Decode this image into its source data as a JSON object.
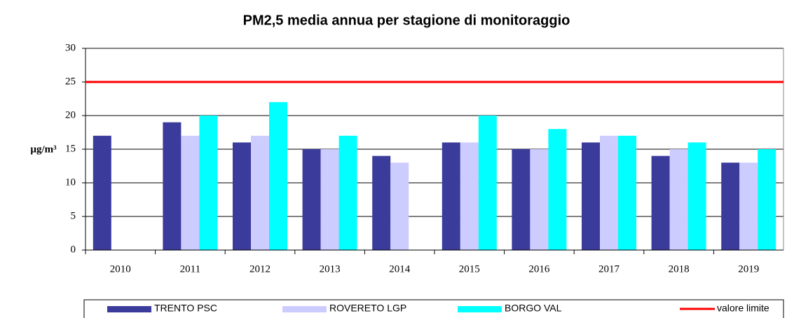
{
  "chart_data": {
    "type": "bar",
    "title": "PM2,5 media annua per stagione di monitoraggio",
    "y_label": "µg/m³",
    "categories": [
      "2010",
      "2011",
      "2012",
      "2013",
      "2014",
      "2015",
      "2016",
      "2017",
      "2018",
      "2019"
    ],
    "series": [
      {
        "name": "TRENTO PSC",
        "color": "#3b3b9c",
        "values": [
          17,
          19,
          16,
          15,
          14,
          16,
          15,
          16,
          14,
          13
        ]
      },
      {
        "name": "ROVERETO LGP",
        "color": "#ccccff",
        "values": [
          null,
          17,
          17,
          15,
          13,
          16,
          15,
          17,
          15,
          13
        ]
      },
      {
        "name": "BORGO VAL",
        "color": "#00ffff",
        "values": [
          null,
          20,
          22,
          17,
          null,
          20,
          18,
          17,
          16,
          15
        ]
      }
    ],
    "reference_lines": [
      {
        "name": "valore limite",
        "value": 25,
        "color": "#ff0000"
      }
    ],
    "ylim": [
      0,
      30
    ],
    "yticks": [
      0,
      5,
      10,
      15,
      20,
      25,
      30
    ],
    "grid": true,
    "legend": "bottom"
  }
}
